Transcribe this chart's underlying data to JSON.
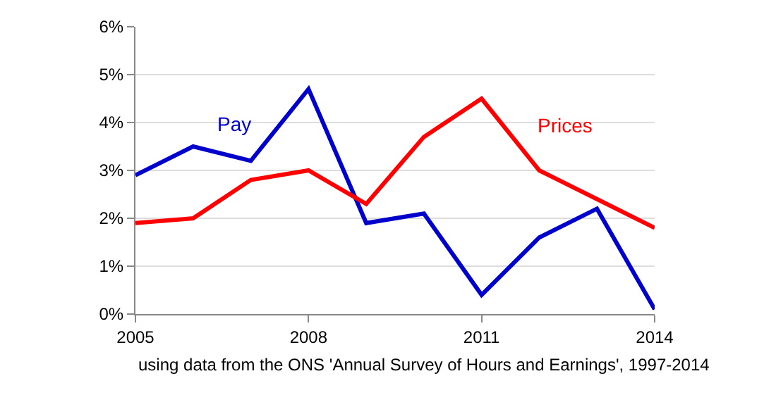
{
  "chart_data": {
    "type": "line",
    "x": [
      2005,
      2006,
      2007,
      2008,
      2009,
      2010,
      2011,
      2012,
      2013,
      2014
    ],
    "series": [
      {
        "name": "Pay",
        "color": "#0000cc",
        "values": [
          2.9,
          3.5,
          3.2,
          4.7,
          1.9,
          2.1,
          0.4,
          1.6,
          2.2,
          0.1
        ]
      },
      {
        "name": "Prices",
        "color": "#ff0000",
        "values": [
          1.9,
          2.0,
          2.8,
          3.0,
          2.3,
          3.7,
          4.5,
          3.0,
          2.4,
          1.8
        ]
      }
    ],
    "xlim": [
      2005,
      2014
    ],
    "xticks": [
      2005,
      2008,
      2011,
      2014
    ],
    "ylim": [
      0,
      6
    ],
    "yticks": [
      {
        "value": 0,
        "label": "0%"
      },
      {
        "value": 1,
        "label": "1%"
      },
      {
        "value": 2,
        "label": "2%"
      },
      {
        "value": 3,
        "label": "3%"
      },
      {
        "value": 4,
        "label": "4%"
      },
      {
        "value": 5,
        "label": "5%"
      },
      {
        "value": 6,
        "label": "6%"
      }
    ],
    "grid": "y",
    "legend": false,
    "line_style": "solid",
    "marker": "none",
    "annotations": [
      "using data from the ONS 'Annual Survey of Hours and Earnings', 1997-2014"
    ]
  }
}
